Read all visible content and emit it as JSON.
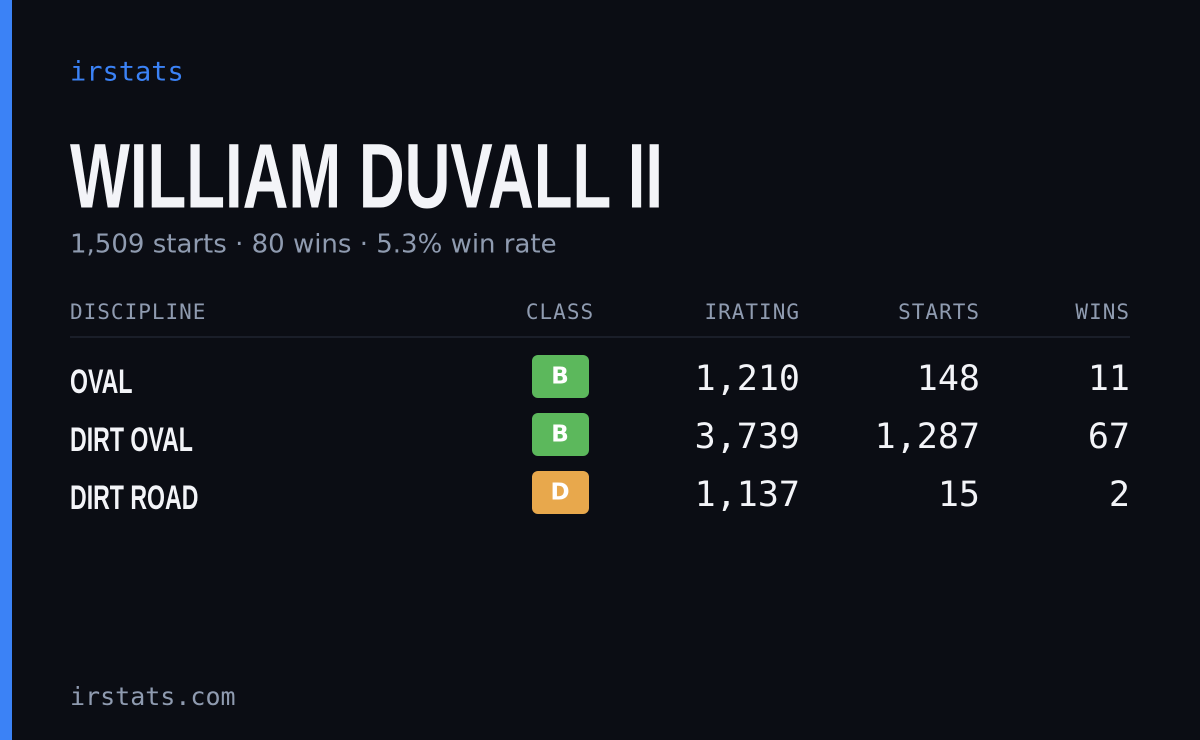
{
  "brand": "irstats",
  "driver": {
    "name": "WILLIAM DUVALL II",
    "summary": "1,509 starts · 80 wins · 5.3% win rate"
  },
  "table": {
    "headers": [
      "DISCIPLINE",
      "CLASS",
      "IRATING",
      "STARTS",
      "WINS"
    ],
    "rows": [
      {
        "discipline": "OVAL",
        "class": "B",
        "class_color": "#5cb85c",
        "irating": "1,210",
        "starts": "148",
        "wins": "11"
      },
      {
        "discipline": "DIRT OVAL",
        "class": "B",
        "class_color": "#5cb85c",
        "irating": "3,739",
        "starts": "1,287",
        "wins": "67"
      },
      {
        "discipline": "DIRT ROAD",
        "class": "D",
        "class_color": "#e8a84c",
        "irating": "1,137",
        "starts": "15",
        "wins": "2"
      }
    ]
  },
  "footer": "irstats.com"
}
